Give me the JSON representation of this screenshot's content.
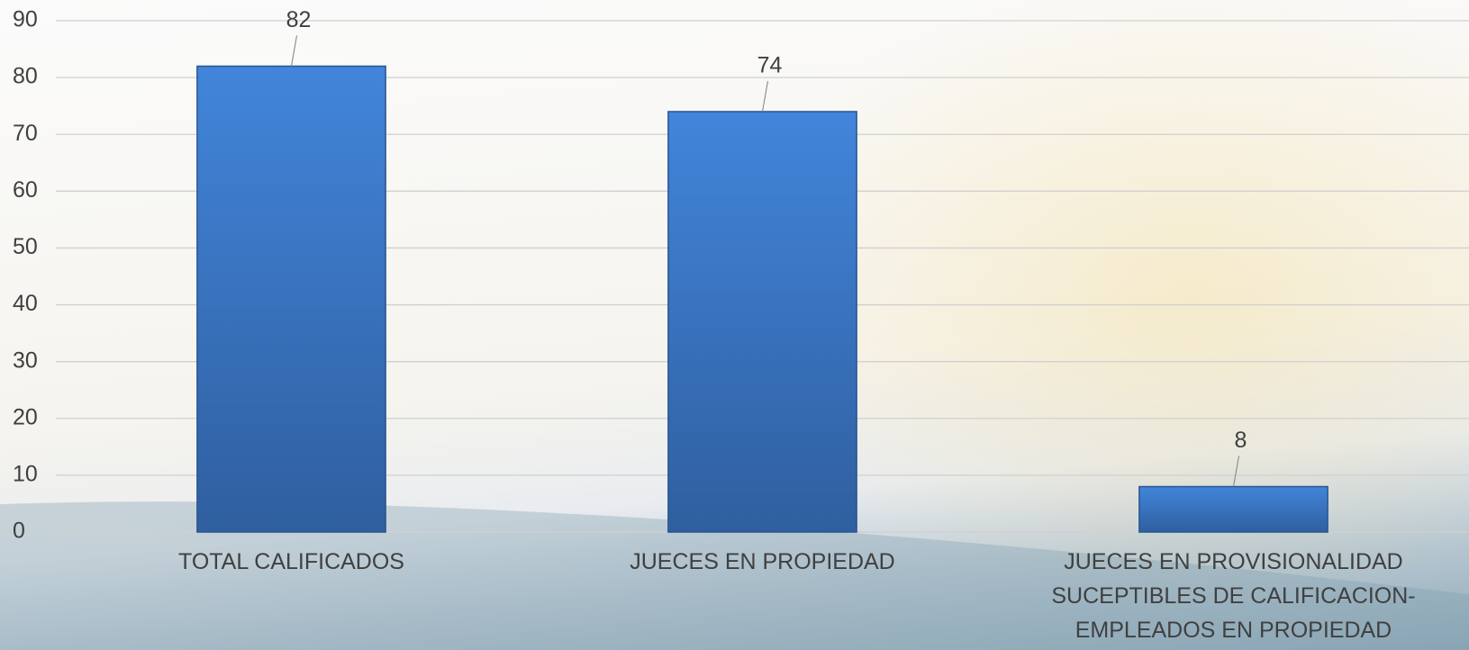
{
  "chart_data": {
    "type": "bar",
    "categories": [
      "TOTAL CALIFICADOS",
      "JUECES EN PROPIEDAD",
      "JUECES EN PROVISIONALIDAD SUCEPTIBLES DE CALIFICACION-EMPLEADOS EN PROPIEDAD"
    ],
    "values": [
      82,
      74,
      8
    ],
    "color": "#3b78c8",
    "ylim": [
      0,
      90
    ],
    "yticks": [
      0,
      10,
      20,
      30,
      40,
      50,
      60,
      70,
      80,
      90
    ],
    "grid": true
  }
}
